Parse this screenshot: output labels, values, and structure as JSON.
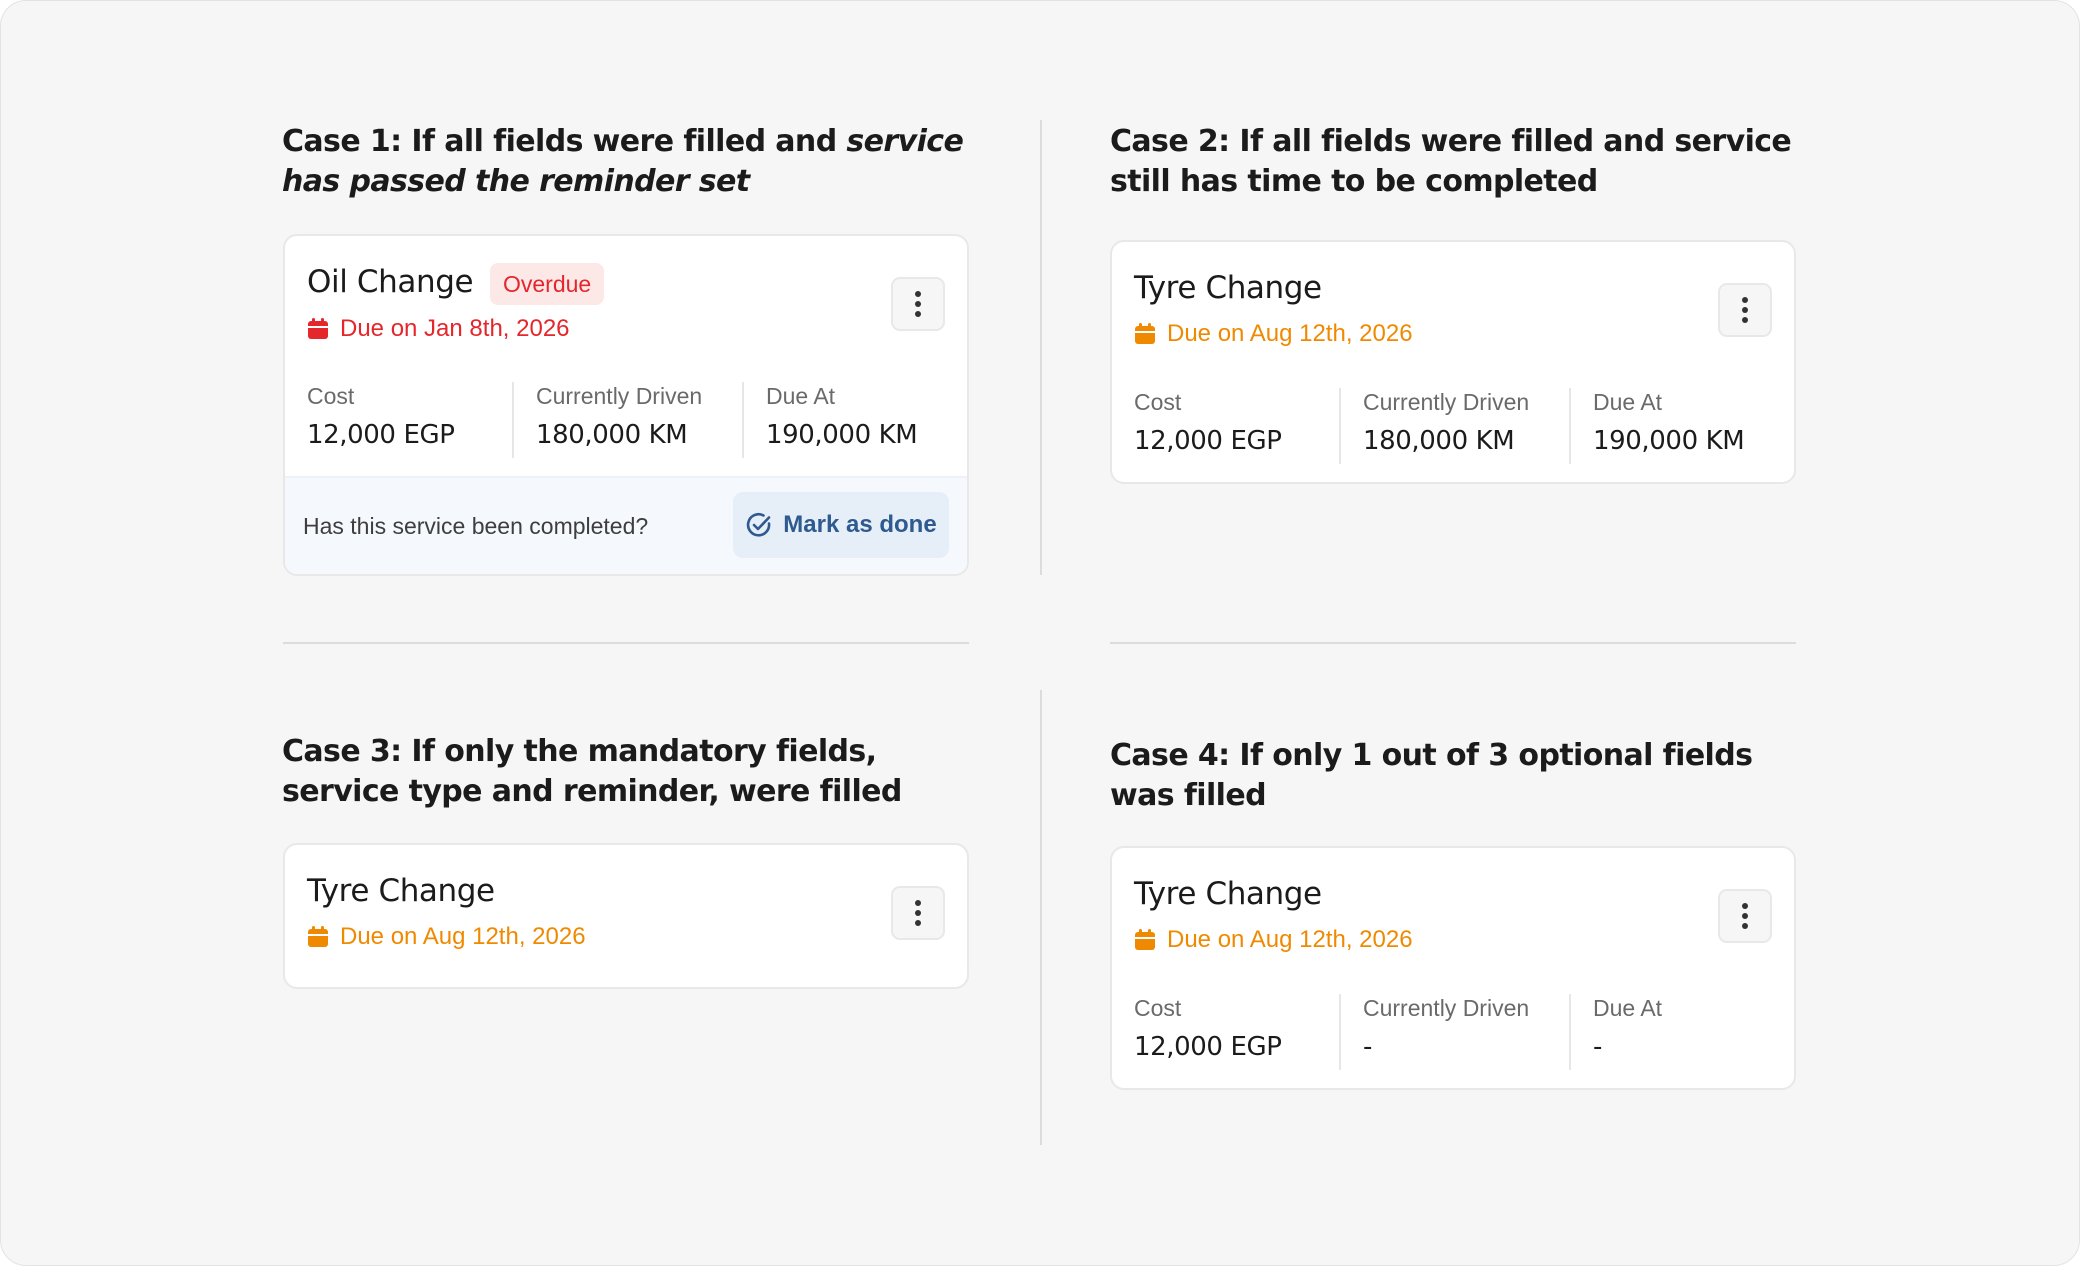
{
  "cases": [
    {
      "title_plain": "Case 1: If all fields were filled and ",
      "title_italic": "service has passed the reminder set",
      "card": {
        "name": "Oil Change",
        "badge": "Overdue",
        "due": "Due on Jan 8th,  2026",
        "due_color": "#e5262b",
        "stats": [
          {
            "label": "Cost",
            "value": "12,000 EGP"
          },
          {
            "label": "Currently Driven",
            "value": "180,000 KM"
          },
          {
            "label": "Due At",
            "value": "190,000 KM"
          }
        ],
        "footer_question": "Has this service been completed?",
        "footer_button": "Mark as done"
      }
    },
    {
      "title": "Case 2: If all fields were filled and service still has time to be completed",
      "card": {
        "name": "Tyre Change",
        "due": "Due on Aug 12th,  2026",
        "due_color": "#ef8a00",
        "stats": [
          {
            "label": "Cost",
            "value": "12,000 EGP"
          },
          {
            "label": "Currently Driven",
            "value": "180,000 KM"
          },
          {
            "label": "Due At",
            "value": "190,000 KM"
          }
        ]
      }
    },
    {
      "title": "Case 3: If only the mandatory fields, service type and reminder, were filled",
      "card": {
        "name": "Tyre Change",
        "due": "Due on Aug 12th,  2026",
        "due_color": "#ef8a00"
      }
    },
    {
      "title": "Case 4: If only 1 out of 3 optional fields was filled",
      "card": {
        "name": "Tyre Change",
        "due": "Due on Aug 12th,  2026",
        "due_color": "#ef8a00",
        "stats": [
          {
            "label": "Cost",
            "value": "12,000 EGP"
          },
          {
            "label": "Currently Driven",
            "value": "-"
          },
          {
            "label": "Due At",
            "value": "-"
          }
        ]
      }
    }
  ],
  "icons": {
    "calendar": "calendar-icon",
    "more": "more-vertical-icon",
    "check": "check-circle-icon"
  }
}
